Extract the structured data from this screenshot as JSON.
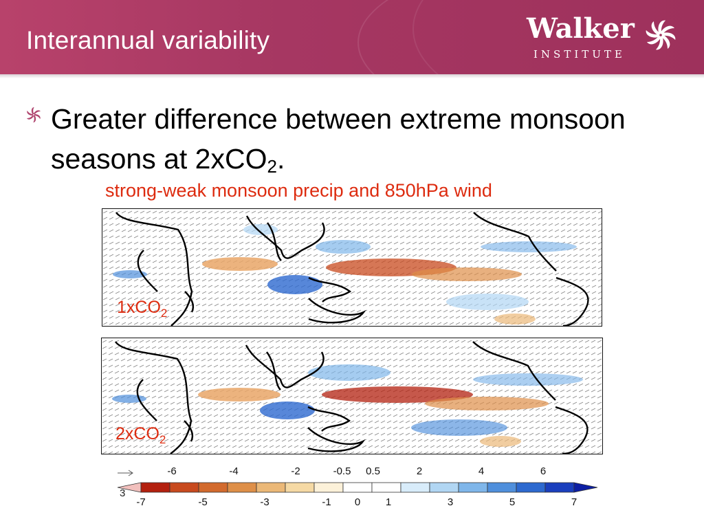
{
  "slide": {
    "title": "Interannual variability",
    "logo": {
      "name": "Walker",
      "subtitle": "INSTITUTE",
      "mark_icon": "walker-pinwheel-icon"
    },
    "bullet": {
      "text": "Greater difference between extreme monsoon seasons at 2xCO",
      "subscript": "2",
      "suffix": ".",
      "icon": "pinwheel-bullet-icon"
    },
    "figure_title": "strong-weak monsoon precip and 850hPa wind",
    "panels": [
      {
        "label": "1xCO",
        "subscript": "2"
      },
      {
        "label": "2xCO",
        "subscript": "2"
      }
    ],
    "colorbar": {
      "top_ticks": [
        "-6",
        "-4",
        "-2",
        "-0.5",
        "0.5",
        "2",
        "4",
        "6"
      ],
      "bottom_ticks": [
        "-7",
        "-5",
        "-3",
        "-1",
        "0",
        "1",
        "3",
        "5",
        "7"
      ],
      "colors": [
        "#f2c0bd",
        "#b3200f",
        "#c84a1e",
        "#d26a2d",
        "#de8f48",
        "#ebb877",
        "#f5d9a4",
        "#fcf1d9",
        "#ffffff",
        "#ffffff",
        "#d8ecfa",
        "#b1d6f3",
        "#7fb6ea",
        "#4f8fdc",
        "#2d69cf",
        "#1a3fbd",
        "#0d1fa3"
      ],
      "reference_vector": "3"
    },
    "colors": {
      "header": "#a63762",
      "accent_red": "#dd2b0f"
    }
  }
}
